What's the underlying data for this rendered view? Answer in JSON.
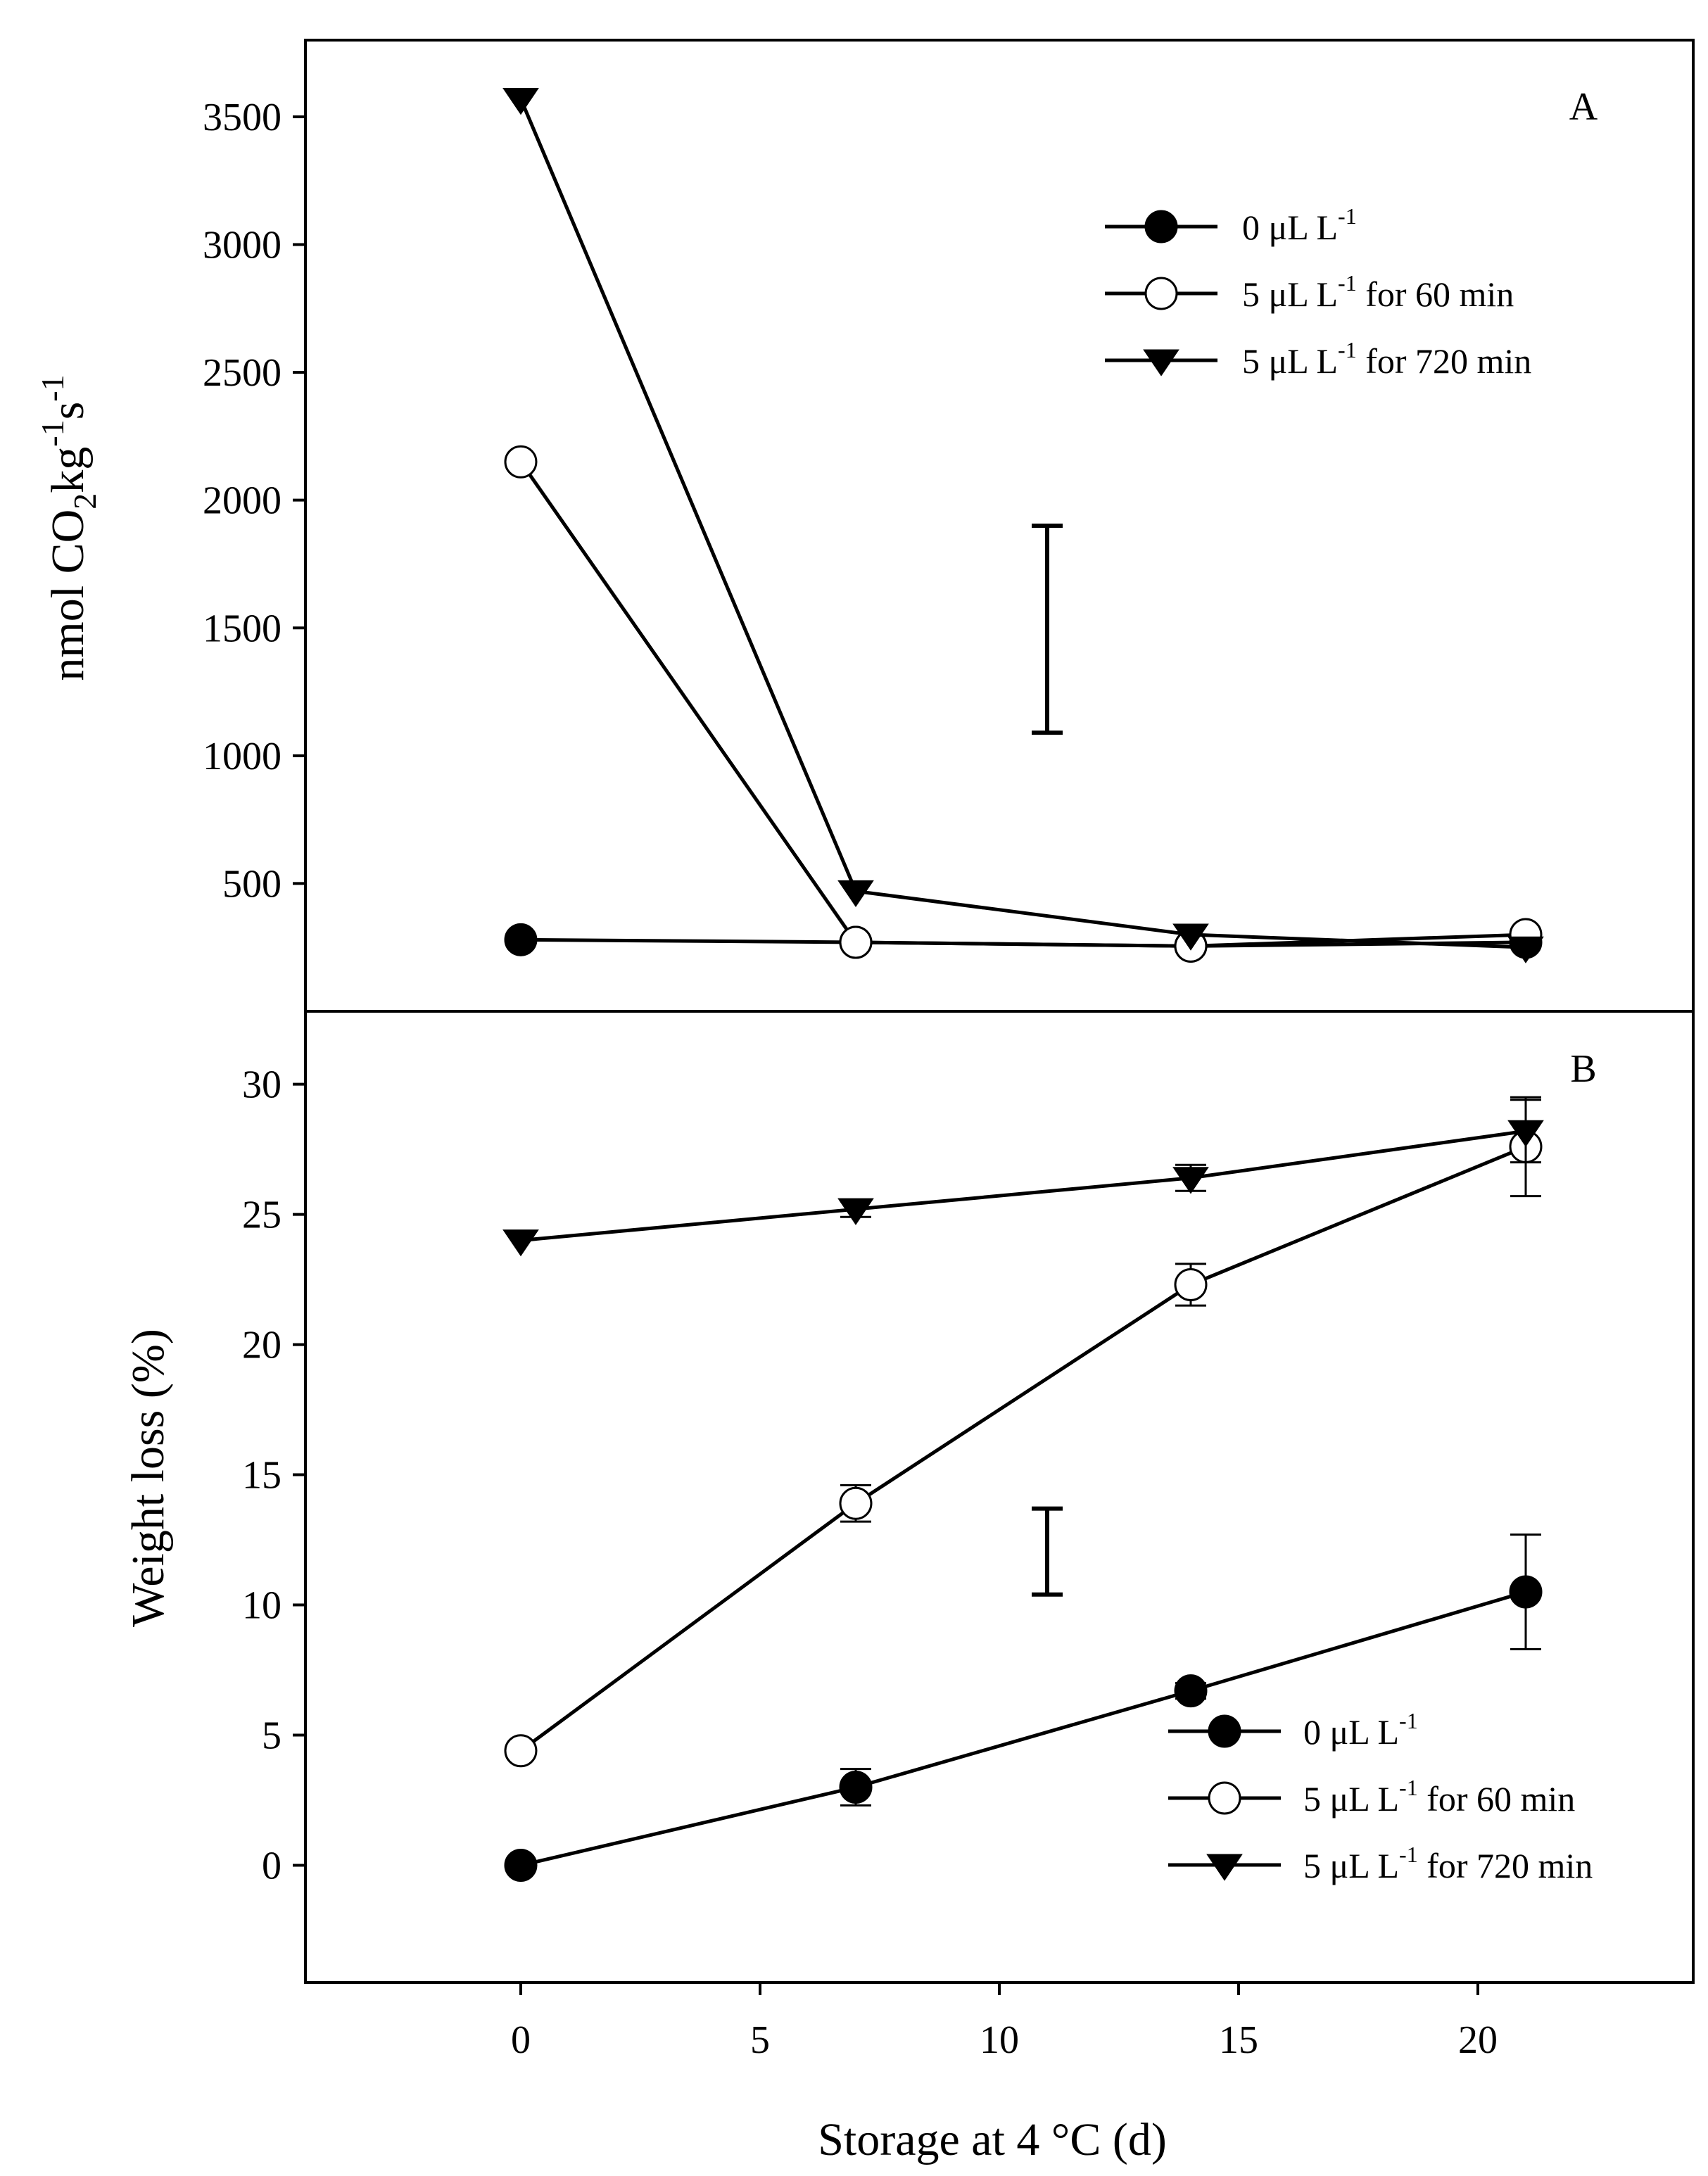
{
  "chart_data": [
    {
      "panel": "A",
      "type": "line",
      "ylabel": "nmol CO2kg-1s-1",
      "ylim": [
        0,
        3800
      ],
      "y_ticks": [
        500,
        1000,
        1500,
        2000,
        2500,
        3000,
        3500
      ],
      "x_ticks": [
        0,
        5,
        10,
        15,
        20
      ],
      "xlim": [
        -4.5,
        24.5
      ],
      "x": [
        0,
        7,
        14,
        21
      ],
      "lsd_bar": {
        "x": 11,
        "low": 1090,
        "high": 1900
      },
      "legend_position": "top-right",
      "series": [
        {
          "name": "0 μL L-1",
          "marker": "filled-circle",
          "values": [
            280,
            270,
            255,
            270
          ]
        },
        {
          "name": "5 μL L-1 for 60 min",
          "marker": "open-circle",
          "values": [
            2150,
            270,
            255,
            300
          ]
        },
        {
          "name": "5 μL L-1 for 720 min",
          "marker": "filled-triangle",
          "values": [
            3570,
            470,
            300,
            250
          ]
        }
      ]
    },
    {
      "panel": "B",
      "type": "line",
      "ylabel": "Weight loss (%)",
      "xlabel": "Storage at 4 °C (d)",
      "ylim": [
        -4.5,
        32.8
      ],
      "y_ticks": [
        0,
        5,
        10,
        15,
        20,
        25,
        30
      ],
      "x_ticks": [
        0,
        5,
        10,
        15,
        20
      ],
      "xlim": [
        -4.5,
        24.5
      ],
      "x": [
        0,
        7,
        14,
        21
      ],
      "lsd_bar": {
        "x": 11,
        "low": 10.4,
        "high": 13.7
      },
      "legend_position": "bottom-right",
      "series": [
        {
          "name": "0 μL L-1",
          "marker": "filled-circle",
          "values": [
            0,
            3.0,
            6.7,
            10.5
          ],
          "errors": [
            0,
            0.7,
            0.3,
            2.2
          ]
        },
        {
          "name": "5 μL L-1 for 60 min",
          "marker": "open-circle",
          "values": [
            4.4,
            13.9,
            22.3,
            27.6
          ],
          "errors": [
            0,
            0.7,
            0.8,
            1.9
          ]
        },
        {
          "name": "5 μL L-1 for 720 min",
          "marker": "filled-triangle",
          "values": [
            24.0,
            25.2,
            26.4,
            28.2
          ],
          "errors": [
            0,
            0.3,
            0.5,
            1.2
          ]
        }
      ]
    }
  ],
  "labels": {
    "panel_a": "A",
    "panel_b": "B",
    "ylabel_a_main": "nmol CO",
    "ylabel_a_sub": "2",
    "ylabel_a_kg": "kg",
    "ylabel_a_sup1": "-1",
    "ylabel_a_s": "s",
    "ylabel_a_sup2": "-1",
    "ylabel_b": "Weight loss (%)",
    "xlabel": "Storage at 4 °C (d)"
  },
  "legend": {
    "items": [
      {
        "base": "0 μL L",
        "sup": "-1",
        "rest": ""
      },
      {
        "base": "5 μL L",
        "sup": "-1",
        "rest": " for 60 min"
      },
      {
        "base": "5 μL L",
        "sup": "-1",
        "rest": " for 720 min"
      }
    ]
  }
}
